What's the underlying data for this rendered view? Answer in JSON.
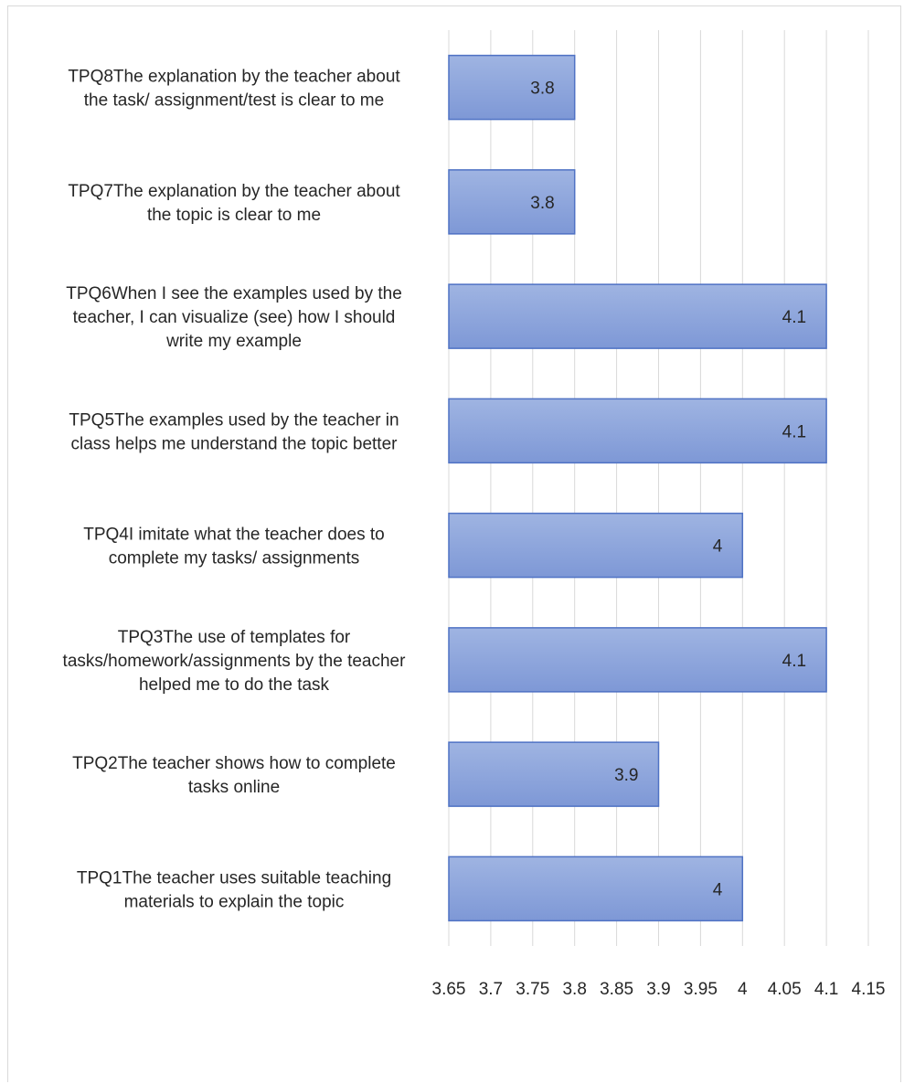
{
  "chart_data": {
    "type": "bar",
    "orientation": "horizontal",
    "categories": [
      "TPQ8The explanation by the teacher about the task/ assignment/test is clear to me",
      "TPQ7The explanation by the teacher about the topic is clear to me",
      "TPQ6When I see the examples used by the teacher, I can visualize (see) how I should write my example",
      "TPQ5The examples used by the teacher in class helps me understand the topic better",
      "TPQ4I imitate what the teacher does to complete my tasks/ assignments",
      "TPQ3The use of templates for tasks/homework/assignments by the teacher helped me to do the task",
      "TPQ2The teacher shows how to complete tasks online",
      "TPQ1The teacher uses suitable teaching materials to explain the topic"
    ],
    "category_lines": [
      [
        "TPQ8The explanation by the teacher about",
        "the task/ assignment/test is clear to me"
      ],
      [
        "TPQ7The explanation by the teacher about",
        "the topic is clear to me"
      ],
      [
        "TPQ6When I see the examples used by the",
        "teacher, I can visualize (see) how I should",
        "write my example"
      ],
      [
        "TPQ5The examples used by the teacher in",
        "class helps me understand the topic better"
      ],
      [
        "TPQ4I imitate what the teacher does to",
        "complete my tasks/ assignments"
      ],
      [
        "TPQ3The use of templates for",
        "tasks/homework/assignments by the teacher",
        "helped me to do the task"
      ],
      [
        "TPQ2The teacher shows how to complete",
        "tasks online"
      ],
      [
        "TPQ1The teacher uses suitable teaching",
        "materials to explain the topic"
      ]
    ],
    "values": [
      3.8,
      3.8,
      4.1,
      4.1,
      4.0,
      4.1,
      3.9,
      4.0
    ],
    "data_labels": [
      "3.8",
      "3.8",
      "4.1",
      "4.1",
      "4",
      "4.1",
      "3.9",
      "4"
    ],
    "x_ticks": [
      "3.65",
      "3.7",
      "3.75",
      "3.8",
      "3.85",
      "3.9",
      "3.95",
      "4",
      "4.05",
      "4.1",
      "4.15"
    ],
    "xlim": [
      3.65,
      4.15
    ],
    "grid": true,
    "colors": {
      "bar_top": "#9fb4e2",
      "bar_bottom": "#7e98d6",
      "bar_border": "#4f72c4",
      "grid": "#d9d9d9"
    }
  }
}
